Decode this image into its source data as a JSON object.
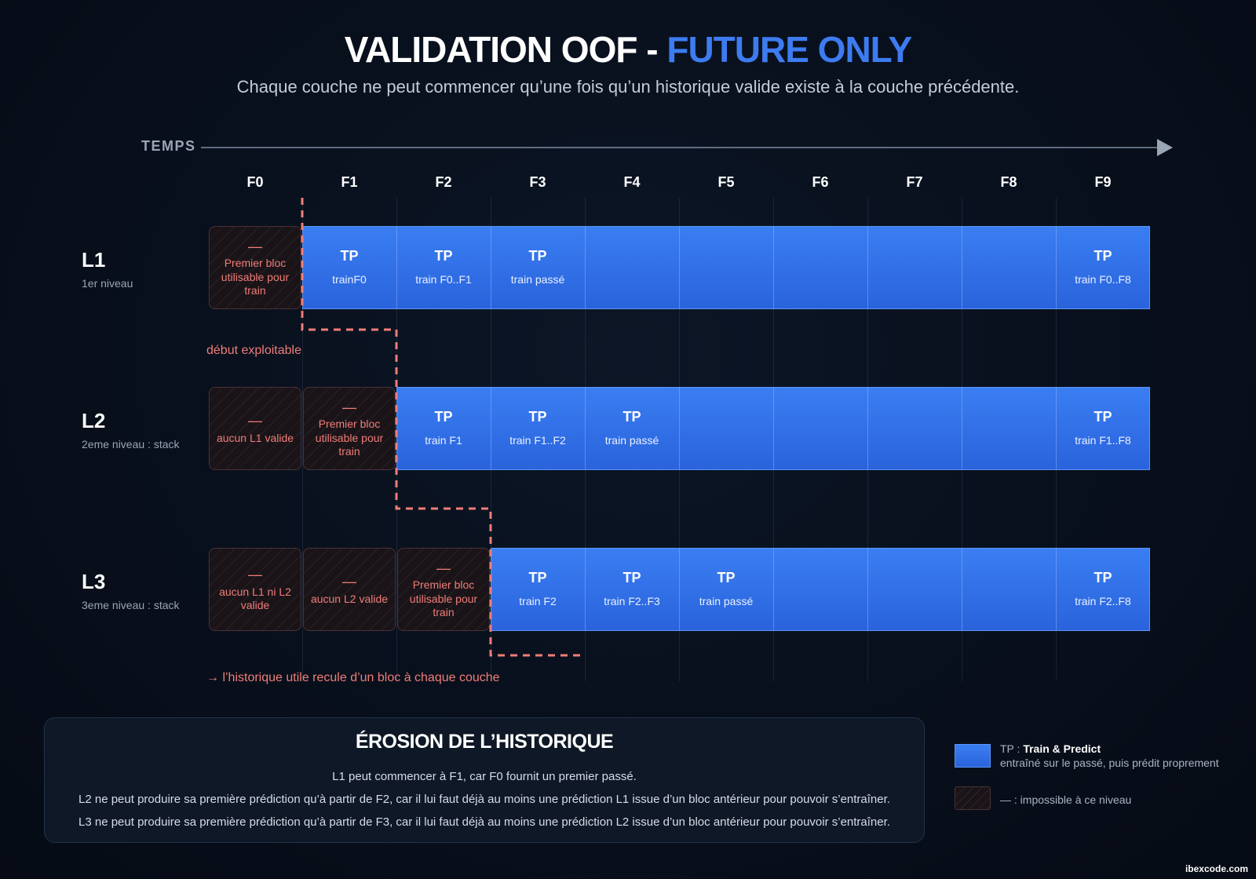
{
  "title": {
    "main": "VALIDATION OOF - ",
    "accent": "FUTURE ONLY"
  },
  "subtitle": "Chaque couche ne peut commencer qu’une fois qu’un historique valide existe à la couche précédente.",
  "axis_label": "TEMPS",
  "columns": [
    "F0",
    "F1",
    "F2",
    "F3",
    "F4",
    "F5",
    "F6",
    "F7",
    "F8",
    "F9"
  ],
  "rows": [
    {
      "name": "L1",
      "desc": "1er niveau",
      "blocked": [
        {
          "col": 0,
          "dash": "—",
          "text": "Premier bloc utilisable pour train"
        }
      ],
      "start": 1,
      "cells": [
        {
          "col": 1,
          "tp": "TP",
          "sub": "trainF0"
        },
        {
          "col": 2,
          "tp": "TP",
          "sub": "train F0..F1"
        },
        {
          "col": 3,
          "tp": "TP",
          "sub": "train passé"
        },
        {
          "col": 9,
          "tp": "TP",
          "sub": "train F0..F8"
        }
      ]
    },
    {
      "name": "L2",
      "desc": "2eme niveau : stack",
      "blocked": [
        {
          "col": 0,
          "dash": "—",
          "text": "aucun L1 valide"
        },
        {
          "col": 1,
          "dash": "—",
          "text": "Premier bloc utilisable pour train"
        }
      ],
      "start": 2,
      "cells": [
        {
          "col": 2,
          "tp": "TP",
          "sub": "train F1"
        },
        {
          "col": 3,
          "tp": "TP",
          "sub": "train F1..F2"
        },
        {
          "col": 4,
          "tp": "TP",
          "sub": "train passé"
        },
        {
          "col": 9,
          "tp": "TP",
          "sub": "train F1..F8"
        }
      ]
    },
    {
      "name": "L3",
      "desc": "3eme niveau : stack",
      "blocked": [
        {
          "col": 0,
          "dash": "—",
          "text": "aucun L1 ni L2 valide"
        },
        {
          "col": 1,
          "dash": "—",
          "text": "aucun L2 valide"
        },
        {
          "col": 2,
          "dash": "—",
          "text": "Premier bloc utilisable pour train"
        }
      ],
      "start": 3,
      "cells": [
        {
          "col": 3,
          "tp": "TP",
          "sub": "train F2"
        },
        {
          "col": 4,
          "tp": "TP",
          "sub": "train F2..F3"
        },
        {
          "col": 5,
          "tp": "TP",
          "sub": "train passé"
        },
        {
          "col": 9,
          "tp": "TP",
          "sub": "train F2..F8"
        }
      ]
    }
  ],
  "annotations": {
    "debut": "début exploitable",
    "recule": "→ l’historique utile recule d’un bloc à chaque couche"
  },
  "panel": {
    "title": "ÉROSION DE L’HISTORIQUE",
    "lines": [
      "L1 peut commencer à F1, car F0 fournit un premier passé.",
      "L2 ne peut produire sa première prédiction qu’à partir de F2, car il lui faut déjà au moins une prédiction L1 issue d’un bloc antérieur pour pouvoir s’entraîner.",
      "L3 ne peut produire sa première prédiction qu’à partir de F3, car il lui faut déjà au moins une prédiction L2 issue d’un bloc antérieur pour pouvoir s’entraîner."
    ]
  },
  "legend": {
    "tp_prefix": "TP : ",
    "tp_bold": "Train & Predict",
    "tp_desc": "entraîné sur le passé, puis prédit proprement",
    "blocked_desc": "— : impossible à ce niveau"
  },
  "footer": "ibexcode.com",
  "colors": {
    "accent": "#3d7cf0",
    "tp_fill": "#2f6ee6",
    "warning": "#f07d78",
    "background": "#080f1b"
  }
}
